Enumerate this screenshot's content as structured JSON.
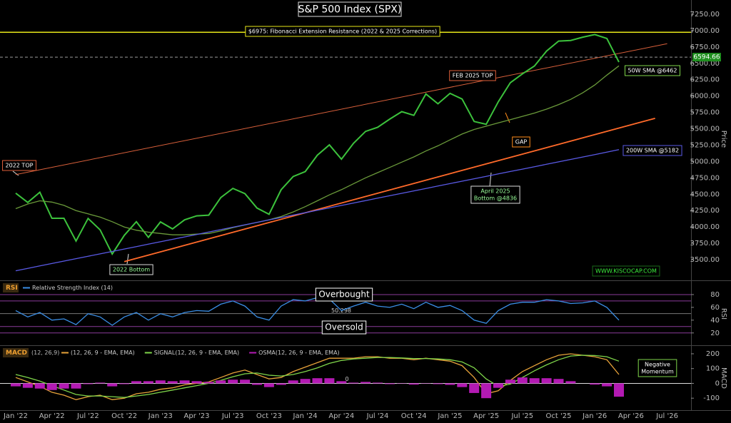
{
  "chart_data": [
    {
      "type": "line",
      "title": "S&P 500 Index (SPX)",
      "y_label": "Price",
      "ylim": [
        3195,
        7468
      ],
      "yticks": [
        {
          "value": 3500,
          "label": "3500.00"
        },
        {
          "value": 3750,
          "label": "3750.00"
        },
        {
          "value": 4000,
          "label": "4000.00"
        },
        {
          "value": 4250,
          "label": "4250.00"
        },
        {
          "value": 4500,
          "label": "4500.00"
        },
        {
          "value": 4750,
          "label": "4750.00"
        },
        {
          "value": 5000,
          "label": "5000.00"
        },
        {
          "value": 5250,
          "label": "5250.00"
        },
        {
          "value": 5500,
          "label": "5500.00"
        },
        {
          "value": 5750,
          "label": "5750.00"
        },
        {
          "value": 6000,
          "label": "6000.00"
        },
        {
          "value": 6250,
          "label": "6250.00"
        },
        {
          "value": 6500,
          "label": "6500.00"
        },
        {
          "value": 6750,
          "label": "6750.00"
        },
        {
          "value": 7000,
          "label": "7000.00"
        },
        {
          "value": 7250,
          "label": "7250.00"
        }
      ],
      "series": [
        {
          "color": "#3cc23c",
          "values": [
            4516,
            4374,
            4530,
            4132,
            4132,
            3785,
            4130,
            3955,
            3586,
            3872,
            4080,
            3840,
            4077,
            3970,
            4109,
            4169,
            4180,
            4450,
            4589,
            4508,
            4288,
            4194,
            4568,
            4770,
            4846,
            5096,
            5254,
            5036,
            5278,
            5460,
            5522,
            5648,
            5762,
            5705,
            6032,
            5882,
            6041,
            5955,
            5612,
            5569,
            5912,
            6205,
            6339,
            6460,
            6688,
            6840,
            6850,
            6900,
            6940,
            6880,
            6520,
            null,
            null,
            null,
            null
          ]
        },
        {
          "color": "#6a9a3a",
          "values": [
            4280,
            4350,
            4400,
            4380,
            4330,
            4250,
            4200,
            4150,
            4080,
            4000,
            3950,
            3920,
            3900,
            3880,
            3880,
            3890,
            3900,
            3940,
            3990,
            4030,
            4070,
            4110,
            4160,
            4230,
            4310,
            4400,
            4490,
            4570,
            4660,
            4750,
            4830,
            4910,
            4990,
            5070,
            5160,
            5240,
            5330,
            5420,
            5490,
            5540,
            5590,
            5640,
            5690,
            5740,
            5800,
            5870,
            5950,
            6050,
            6170,
            6320,
            6462,
            null,
            null,
            null,
            null
          ]
        },
        {
          "color": "#5a5ae6",
          "values": [
            3330,
            3367,
            3404,
            3441,
            3478,
            3515,
            3552,
            3589,
            3626,
            3663,
            3700,
            3737,
            3774,
            3811,
            3848,
            3885,
            3922,
            3959,
            3996,
            4033,
            4070,
            4107,
            4144,
            4181,
            4218,
            4255,
            4292,
            4329,
            4366,
            4403,
            4440,
            4477,
            4514,
            4551,
            4588,
            4625,
            4662,
            4699,
            4736,
            4773,
            4810,
            4847,
            4884,
            4921,
            4958,
            4995,
            5032,
            5069,
            5106,
            5143,
            5182,
            null,
            null,
            null,
            null
          ]
        }
      ],
      "trendlines": [
        {
          "color": "#d9603b",
          "x": [
            0,
            54
          ],
          "y": [
            4800,
            6800
          ]
        },
        {
          "color": "#ff6a2a",
          "x": [
            9,
            53
          ],
          "y": [
            3470,
            5660
          ]
        }
      ],
      "resistance": 6975,
      "resistance_color": "#e6e619",
      "last_price": 6594.66,
      "annotations": [
        {
          "lines": [
            "$6975: Fibonacci Extension Resistance (2022 & 2025 Corrections)"
          ]
        },
        {
          "lines": [
            "2022 TOP"
          ]
        },
        {
          "lines": [
            "FEB 2025 TOP"
          ]
        },
        {
          "lines": [
            "GAP"
          ]
        },
        {
          "lines": [
            "April 2025",
            "Bottom @4836"
          ]
        },
        {
          "lines": [
            "2022 Bottom"
          ]
        },
        {
          "lines": [
            "50W SMA @6462"
          ]
        },
        {
          "lines": [
            "200W SMA @5182"
          ]
        },
        {
          "lines": [
            "WWW.KISCOCAP.COM"
          ]
        }
      ]
    },
    {
      "type": "line",
      "title": "RSI",
      "y_label": "RSI",
      "ylim": [
        3,
        100
      ],
      "yticks": [
        20,
        40,
        60,
        80
      ],
      "series": [
        {
          "name": "Relative Strength Index (14)",
          "color": "#3a8ee6",
          "values": [
            55,
            45,
            52,
            40,
            42,
            33,
            50,
            45,
            32,
            45,
            52,
            40,
            50,
            45,
            52,
            55,
            54,
            65,
            70,
            62,
            45,
            40,
            62,
            72,
            70,
            75,
            73,
            55,
            62,
            68,
            62,
            60,
            65,
            58,
            68,
            60,
            63,
            55,
            40,
            35,
            55,
            65,
            68,
            68,
            72,
            70,
            66,
            67,
            70,
            60,
            40,
            null,
            null,
            null,
            null
          ]
        }
      ],
      "levels": [
        80,
        70,
        30,
        20
      ],
      "level_color": "#8a3a9a",
      "midline": 50.298,
      "annotations": [
        {
          "lines": [
            "Overbought"
          ]
        },
        {
          "lines": [
            "Oversold"
          ]
        }
      ]
    },
    {
      "type": "line",
      "title": "MACD",
      "subtitle": "(12, 26,9)",
      "y_label": "MACD",
      "ylim": [
        -181,
        248
      ],
      "yticks": [
        -100,
        0,
        100,
        200
      ],
      "categories": [
        "Jan '22",
        null,
        null,
        "Apr '22",
        null,
        null,
        "Jul '22",
        null,
        null,
        "Oct '22",
        null,
        null,
        "Jan '23",
        null,
        null,
        "Apr '23",
        null,
        null,
        "Jul '23",
        null,
        null,
        "Oct '23",
        null,
        null,
        "Jan '24",
        null,
        null,
        "Apr '24",
        null,
        null,
        "Jul '24",
        null,
        null,
        "Oct '24",
        null,
        null,
        "Jan '25",
        null,
        null,
        "Apr '25",
        null,
        null,
        "Jul '25",
        null,
        null,
        "Oct '25",
        null,
        null,
        "Jan '26",
        null,
        null,
        "Apr '26",
        null,
        null,
        "Jul '26"
      ],
      "series": [
        {
          "name": "(12, 26, 9 - EMA, EMA)",
          "color": "#e8a33a",
          "values": [
            40,
            10,
            -20,
            -60,
            -80,
            -110,
            -90,
            -80,
            -110,
            -100,
            -70,
            -60,
            -40,
            -30,
            -10,
            0,
            10,
            40,
            70,
            90,
            60,
            30,
            40,
            80,
            110,
            140,
            170,
            170,
            170,
            180,
            180,
            170,
            170,
            160,
            170,
            160,
            150,
            120,
            40,
            -70,
            -50,
            20,
            80,
            120,
            160,
            190,
            200,
            190,
            180,
            160,
            60,
            null,
            null,
            null,
            null
          ]
        },
        {
          "name": "SIGNAL(12, 26, 9 - EMA, EMA)",
          "color": "#7fd64a",
          "values": [
            60,
            40,
            15,
            -15,
            -45,
            -75,
            -85,
            -85,
            -90,
            -95,
            -85,
            -75,
            -60,
            -45,
            -30,
            -15,
            0,
            20,
            45,
            65,
            70,
            55,
            50,
            60,
            80,
            105,
            135,
            155,
            165,
            170,
            175,
            175,
            172,
            168,
            168,
            165,
            160,
            145,
            105,
            30,
            -20,
            -5,
            40,
            85,
            125,
            160,
            185,
            190,
            188,
            180,
            150,
            null,
            null,
            null,
            null
          ]
        },
        {
          "name": "OSMA(12, 26, 9 - EMA, EMA)",
          "type": "bar",
          "color": "#b31ab3",
          "values": [
            -20,
            -30,
            -35,
            -45,
            -35,
            -35,
            -5,
            5,
            -20,
            -5,
            15,
            15,
            20,
            15,
            20,
            15,
            10,
            20,
            25,
            25,
            -10,
            -25,
            -10,
            20,
            30,
            35,
            35,
            15,
            5,
            10,
            5,
            -5,
            -2,
            -8,
            2,
            -5,
            -10,
            -25,
            -65,
            -100,
            -30,
            25,
            40,
            35,
            35,
            30,
            15,
            0,
            -8,
            -20,
            -90,
            null,
            null,
            null,
            null
          ]
        }
      ],
      "zero_line": 0,
      "annotations": [
        {
          "lines": [
            "Negative",
            "Momentum"
          ]
        }
      ]
    }
  ]
}
